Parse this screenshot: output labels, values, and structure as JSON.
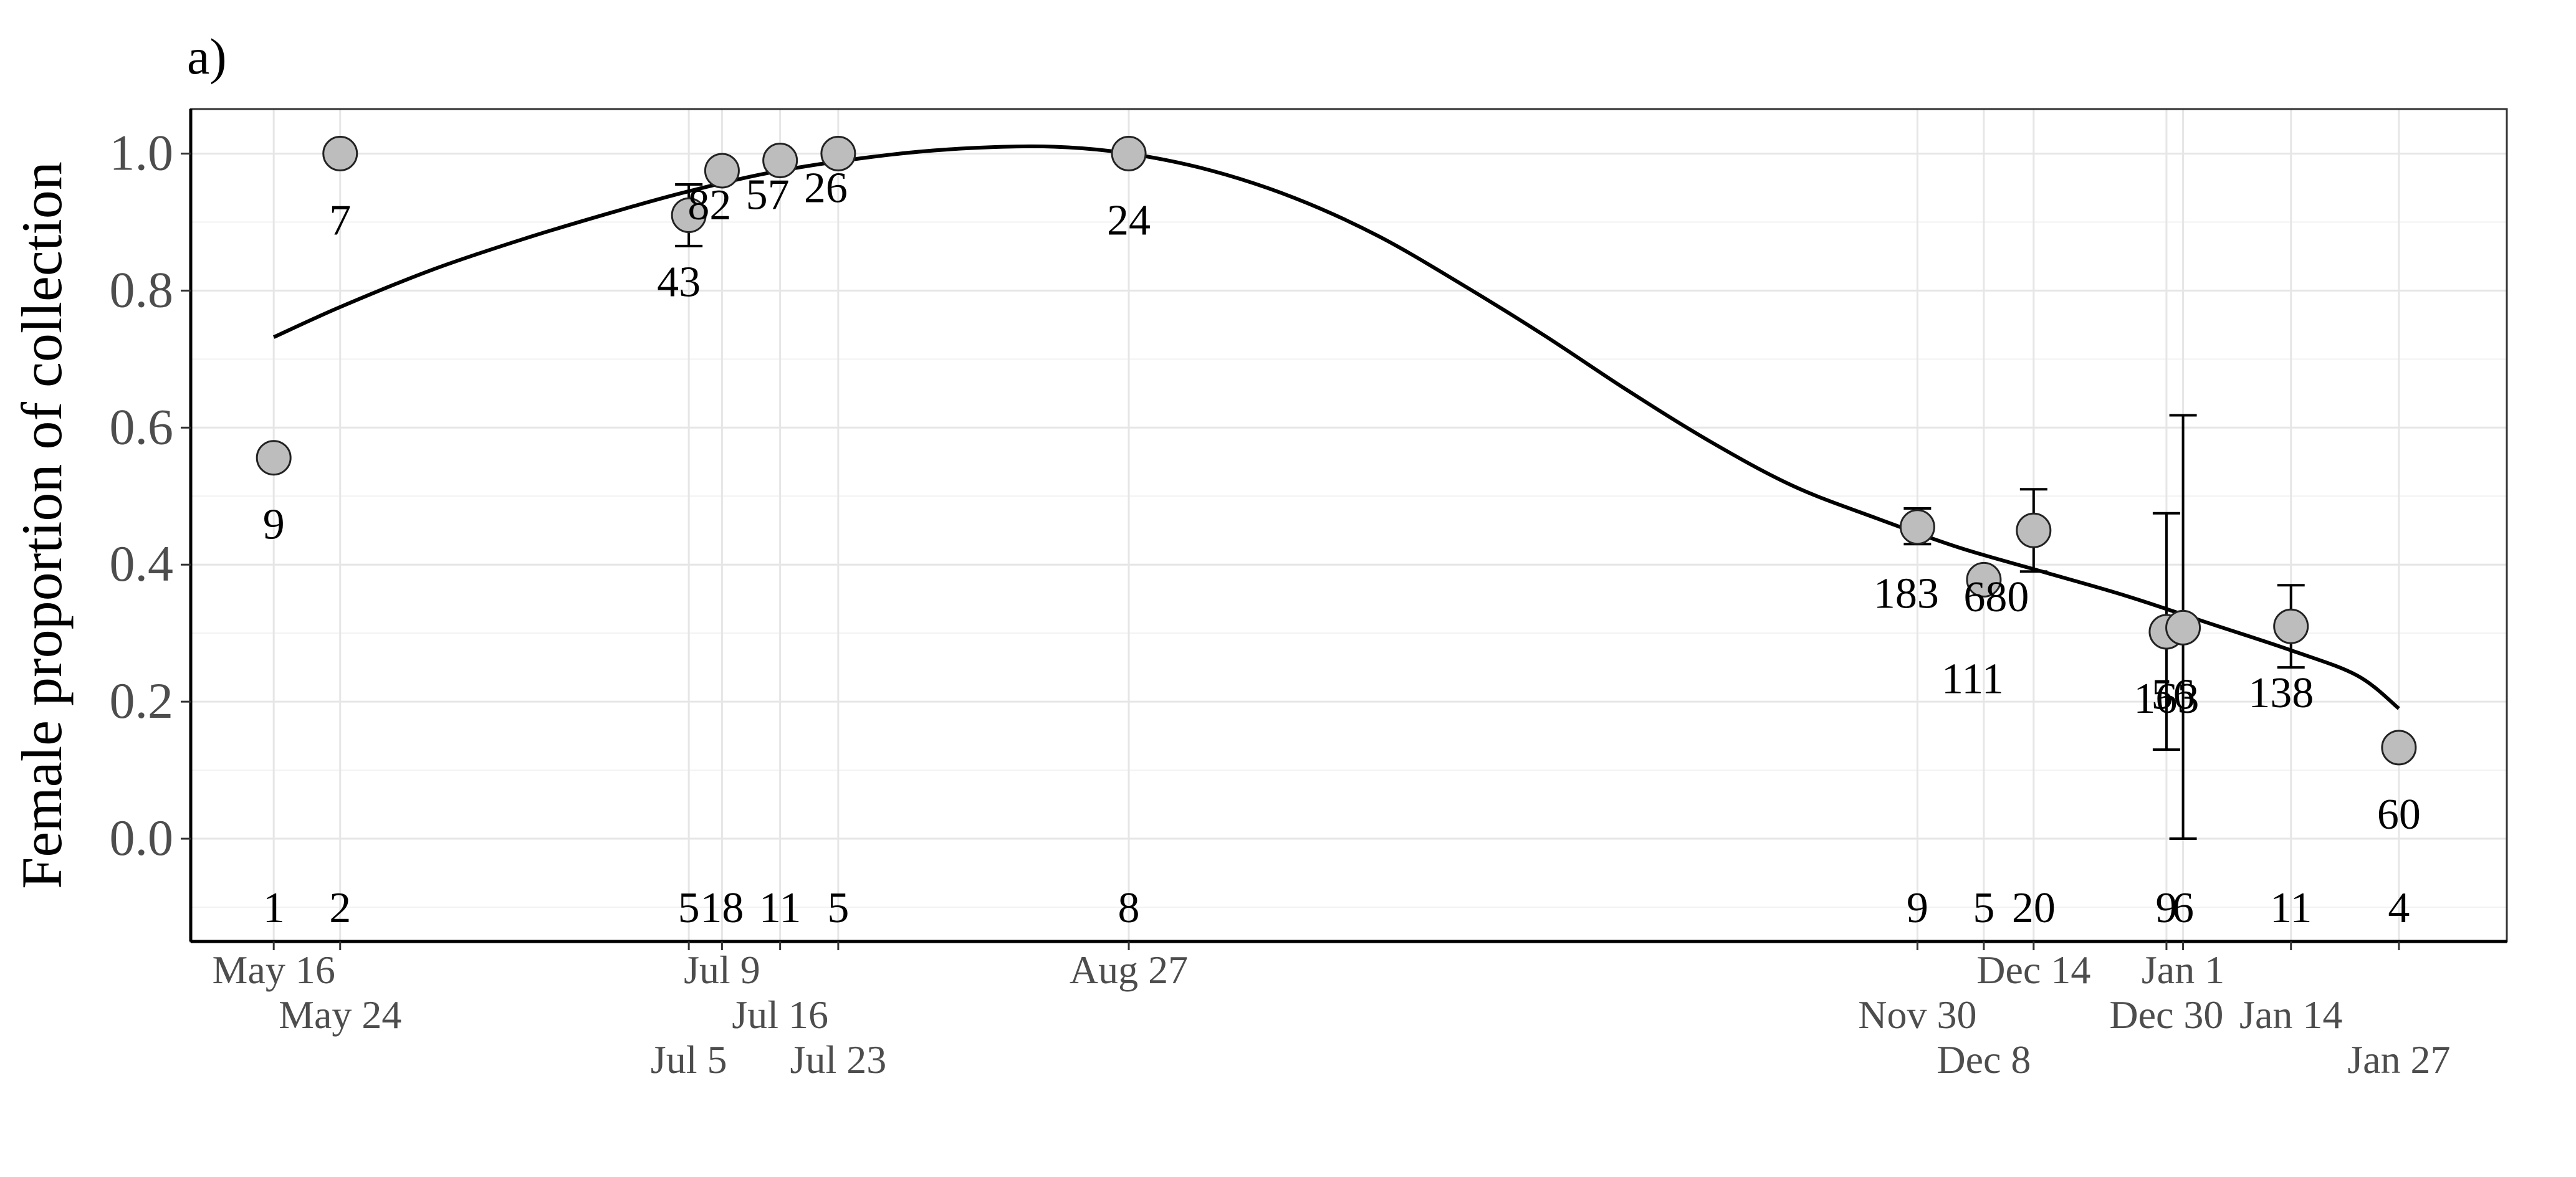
{
  "panel_label": "a)",
  "chart_data": {
    "type": "scatter",
    "title": "",
    "xlabel": "",
    "ylabel": "Female proportion of collection",
    "ylim": [
      -0.15,
      1.065
    ],
    "xlim": [
      "2019-05-06",
      "2020-02-09"
    ],
    "y_ticks": [
      0.0,
      0.2,
      0.4,
      0.6,
      0.8,
      1.0
    ],
    "y_tick_labels": [
      "0.0",
      "0.2",
      "0.4",
      "0.6",
      "0.8",
      "1.0"
    ],
    "grid": true,
    "legend": "none",
    "colors": {
      "point_fill": "#bdbdbd",
      "point_stroke": "#222222",
      "line": "#000000",
      "grid_major": "#e6e6e6",
      "grid_minor": "#f2f2f2",
      "axis_text": "#4d4d4d"
    },
    "points": [
      {
        "date": "2019-05-16",
        "x_label": "May 16",
        "y": 0.556,
        "n": "9",
        "count": "1",
        "err": null
      },
      {
        "date": "2019-05-24",
        "x_label": "May 24",
        "y": 1.0,
        "n": "7",
        "count": "2",
        "err": [
          1.0,
          1.0
        ]
      },
      {
        "date": "2019-07-05",
        "x_label": "Jul 5",
        "y": 0.91,
        "n": "43",
        "count": "5",
        "err": [
          0.865,
          0.955
        ]
      },
      {
        "date": "2019-07-09",
        "x_label": "Jul 9",
        "y": 0.975,
        "n": "82",
        "count": "18",
        "err": [
          0.96,
          0.99
        ]
      },
      {
        "date": "2019-07-16",
        "x_label": "Jul 16",
        "y": 0.99,
        "n": "57",
        "count": "11",
        "err": [
          0.978,
          1.0
        ]
      },
      {
        "date": "2019-07-23",
        "x_label": "Jul 23",
        "y": 1.0,
        "n": "26",
        "count": "5",
        "err": null
      },
      {
        "date": "2019-08-27",
        "x_label": "Aug 27",
        "y": 1.0,
        "n": "24",
        "count": "8",
        "err": null
      },
      {
        "date": "2019-11-30",
        "x_label": "Nov 30",
        "y": 0.455,
        "n": "183",
        "count": "9",
        "err": [
          0.43,
          0.482
        ]
      },
      {
        "date": "2019-12-08",
        "x_label": "Dec 8",
        "y": 0.378,
        "n": "111",
        "count": "5",
        "err": null
      },
      {
        "date": "2019-12-14",
        "x_label": "Dec 14",
        "y": 0.45,
        "n": "680",
        "count": "20",
        "err": [
          0.39,
          0.51
        ]
      },
      {
        "date": "2019-12-30",
        "x_label": "Dec 30",
        "y": 0.302,
        "n": "163",
        "count": "9",
        "err": [
          0.13,
          0.475
        ]
      },
      {
        "date": "2020-01-01",
        "x_label": "Jan 1",
        "y": 0.308,
        "n": "56",
        "count": "6",
        "err": [
          0.0,
          0.618
        ]
      },
      {
        "date": "2020-01-14",
        "x_label": "Jan 14",
        "y": 0.31,
        "n": "138",
        "count": "11",
        "err": [
          0.25,
          0.37
        ]
      },
      {
        "date": "2020-01-27",
        "x_label": "Jan 27",
        "y": 0.133,
        "n": "60",
        "count": "4",
        "err": null
      }
    ],
    "fitted_curve": [
      {
        "date": "2019-05-16",
        "y": 0.732
      },
      {
        "date": "2019-05-24",
        "y": 0.776
      },
      {
        "date": "2019-06-04",
        "y": 0.83
      },
      {
        "date": "2019-06-15",
        "y": 0.875
      },
      {
        "date": "2019-06-26",
        "y": 0.915
      },
      {
        "date": "2019-07-05",
        "y": 0.945
      },
      {
        "date": "2019-07-16",
        "y": 0.975
      },
      {
        "date": "2019-07-29",
        "y": 0.998
      },
      {
        "date": "2019-08-08",
        "y": 1.008
      },
      {
        "date": "2019-08-18",
        "y": 1.01
      },
      {
        "date": "2019-08-27",
        "y": 1.0
      },
      {
        "date": "2019-09-06",
        "y": 0.975
      },
      {
        "date": "2019-09-16",
        "y": 0.935
      },
      {
        "date": "2019-09-26",
        "y": 0.88
      },
      {
        "date": "2019-10-06",
        "y": 0.81
      },
      {
        "date": "2019-10-16",
        "y": 0.735
      },
      {
        "date": "2019-10-26",
        "y": 0.655
      },
      {
        "date": "2019-11-05",
        "y": 0.58
      },
      {
        "date": "2019-11-15",
        "y": 0.515
      },
      {
        "date": "2019-11-25",
        "y": 0.468
      },
      {
        "date": "2019-12-05",
        "y": 0.425
      },
      {
        "date": "2019-12-15",
        "y": 0.39
      },
      {
        "date": "2019-12-25",
        "y": 0.355
      },
      {
        "date": "2020-01-04",
        "y": 0.315
      },
      {
        "date": "2020-01-14",
        "y": 0.275
      },
      {
        "date": "2020-01-22",
        "y": 0.238
      },
      {
        "date": "2020-01-27",
        "y": 0.19
      }
    ]
  }
}
